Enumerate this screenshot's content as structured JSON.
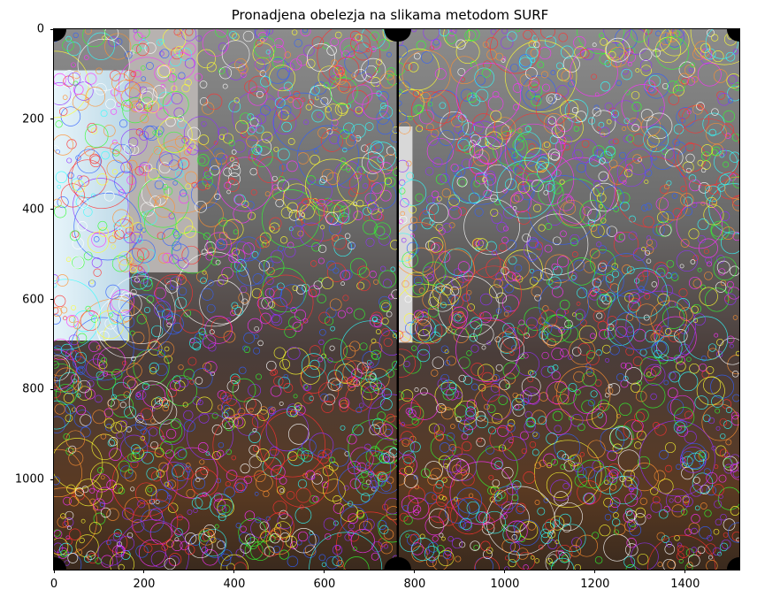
{
  "title": "Pronadjena obelezja na slikama metodom SURF",
  "chart_data": {
    "type": "image",
    "title": "Pronadjena obelezja na slikama metodom SURF",
    "xlim": [
      0,
      1520
    ],
    "ylim": [
      1200,
      0
    ],
    "x_ticks": [
      "0",
      "200",
      "400",
      "600",
      "800",
      "1000",
      "1200",
      "1400"
    ],
    "y_ticks": [
      "0",
      "200",
      "400",
      "600",
      "800",
      "1000"
    ],
    "x_tick_values": [
      0,
      200,
      400,
      600,
      800,
      1000,
      1200,
      1400
    ],
    "y_tick_values": [
      0,
      200,
      400,
      600,
      800,
      1000
    ],
    "panels": 2,
    "keypoint_colors": [
      "#ff3030",
      "#30ff30",
      "#3060ff",
      "#ff30ff",
      "#30ffff",
      "#ffff30",
      "#ff9030",
      "#9030ff",
      "#ffffff"
    ]
  }
}
